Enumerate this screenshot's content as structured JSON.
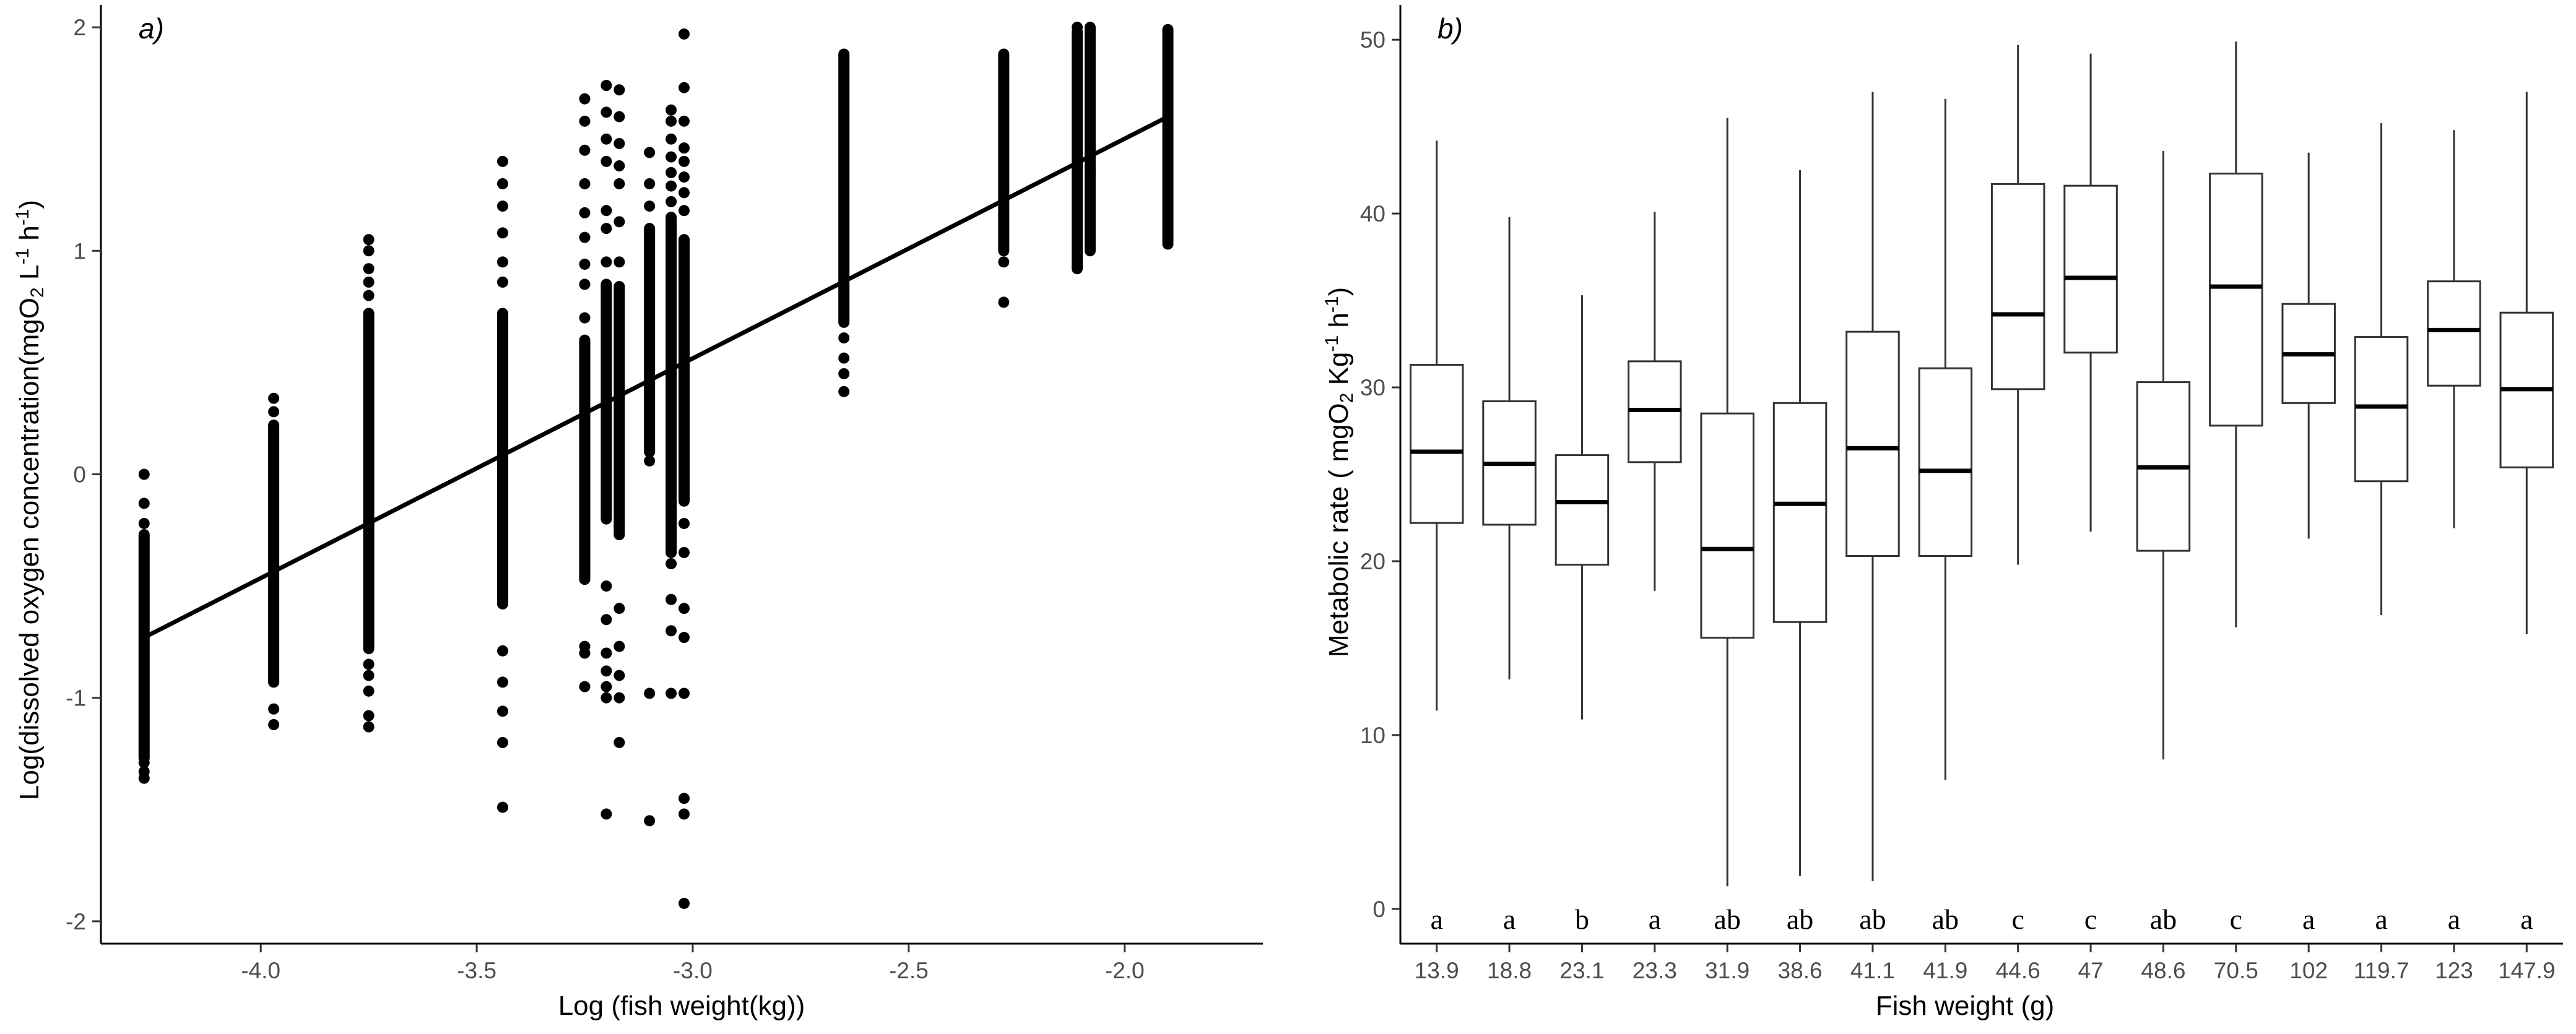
{
  "chart_data": [
    {
      "type": "scatter",
      "panel_label": "a)",
      "xlabel": "Log (fish weight(kg))",
      "ylabel_parts": [
        "Log(dissolved oxygen concentration(mgO",
        "2",
        " L",
        "-1",
        " h",
        "-1",
        ")"
      ],
      "xlim": [
        -4.37,
        -1.68
      ],
      "ylim": [
        -2.1,
        2.1
      ],
      "xticks": [
        -4.0,
        -3.5,
        -3.0,
        -2.5,
        -2.0
      ],
      "xtick_labels": [
        "-4.0",
        "-3.5",
        "-3.0",
        "-2.5",
        "-2.0"
      ],
      "yticks": [
        -2,
        -1,
        0,
        1,
        2
      ],
      "ytick_labels": [
        "-2",
        "-1",
        "0",
        "1",
        "2"
      ],
      "fit_line": {
        "x": [
          -4.27,
          -1.9
        ],
        "y": [
          -0.73,
          1.6
        ]
      },
      "clusters": [
        {
          "x": -4.27,
          "dense": [
            -1.27,
            -0.27
          ],
          "outliers": [
            -1.36,
            -1.33,
            -1.29,
            -0.22,
            -0.13,
            0.0
          ]
        },
        {
          "x": -3.97,
          "dense": [
            -0.93,
            0.22
          ],
          "outliers": [
            -1.12,
            -1.05,
            0.28,
            0.34
          ]
        },
        {
          "x": -3.75,
          "dense": [
            -0.78,
            0.72
          ],
          "outliers": [
            -1.13,
            -1.08,
            -0.97,
            -0.9,
            -0.85,
            0.8,
            0.86,
            0.92,
            1.0,
            1.05
          ]
        },
        {
          "x": -3.44,
          "dense": [
            -0.58,
            0.72
          ],
          "outliers": [
            -1.49,
            -1.2,
            -1.06,
            -0.93,
            -0.79,
            0.86,
            0.95,
            1.08,
            1.2,
            1.3,
            1.4
          ]
        },
        {
          "x": -3.25,
          "dense": [
            -0.47,
            0.6
          ],
          "outliers": [
            -0.95,
            -0.8,
            -0.77,
            0.7,
            0.85,
            0.94,
            1.06,
            1.17,
            1.3,
            1.45,
            1.58,
            1.68
          ]
        },
        {
          "x": -3.2,
          "dense": [
            -0.2,
            0.85
          ],
          "outliers": [
            -1.52,
            -1.0,
            -0.95,
            -0.88,
            -0.8,
            -0.65,
            -0.5,
            0.95,
            1.1,
            1.18,
            1.4,
            1.5,
            1.62,
            1.74
          ]
        },
        {
          "x": -3.17,
          "dense": [
            -0.27,
            0.84
          ],
          "outliers": [
            -1.2,
            -1.0,
            -0.9,
            -0.77,
            -0.6,
            0.95,
            1.13,
            1.3,
            1.38,
            1.48,
            1.6,
            1.72
          ]
        },
        {
          "x": -3.1,
          "dense": [
            0.1,
            1.1
          ],
          "outliers": [
            -1.55,
            -0.98,
            0.06,
            1.2,
            1.3,
            1.44
          ]
        },
        {
          "x": -3.05,
          "dense": [
            -0.35,
            1.15
          ],
          "outliers": [
            -0.98,
            -0.7,
            -0.56,
            -0.4,
            1.22,
            1.29,
            1.35,
            1.42,
            1.5,
            1.58,
            1.63
          ]
        },
        {
          "x": -3.02,
          "dense": [
            -0.12,
            1.05
          ],
          "outliers": [
            -1.92,
            -1.52,
            -1.45,
            -0.98,
            -0.73,
            -0.6,
            -0.35,
            -0.22,
            1.18,
            1.26,
            1.33,
            1.4,
            1.46,
            1.58,
            1.73,
            1.97
          ]
        },
        {
          "x": -2.65,
          "dense": [
            0.68,
            1.88
          ],
          "outliers": [
            0.37,
            0.45,
            0.52,
            0.61
          ]
        },
        {
          "x": -2.28,
          "dense": [
            1.0,
            1.88
          ],
          "outliers": [
            0.77,
            0.95
          ]
        },
        {
          "x": -2.11,
          "dense": [
            0.92,
            1.98
          ],
          "outliers": [
            0.93,
            2.0
          ]
        },
        {
          "x": -2.08,
          "dense": [
            1.0,
            2.0
          ],
          "outliers": [
            1.35
          ]
        },
        {
          "x": -1.9,
          "dense": [
            1.04,
            1.99
          ],
          "outliers": [
            1.03
          ]
        }
      ]
    },
    {
      "type": "box",
      "panel_label": "b)",
      "xlabel": "Fish weight (g)",
      "ylabel_parts": [
        "Metabolic rate ( mgO",
        "2",
        " Kg",
        "-1",
        " h",
        "-1",
        ")"
      ],
      "ylim": [
        -2,
        52
      ],
      "yticks": [
        0,
        10,
        20,
        30,
        40,
        50
      ],
      "ytick_labels": [
        "0",
        "10",
        "20",
        "30",
        "40",
        "50"
      ],
      "categories": [
        "13.9",
        "18.8",
        "23.1",
        "23.3",
        "31.9",
        "38.6",
        "41.1",
        "41.9",
        "44.6",
        "47",
        "48.6",
        "70.5",
        "102",
        "119.7",
        "123",
        "147.9"
      ],
      "boxes": [
        {
          "min": 11.4,
          "q1": 22.2,
          "median": 26.3,
          "q3": 31.3,
          "max": 44.2
        },
        {
          "min": 13.2,
          "q1": 22.1,
          "median": 25.6,
          "q3": 29.2,
          "max": 39.8
        },
        {
          "min": 10.9,
          "q1": 19.8,
          "median": 23.4,
          "q3": 26.1,
          "max": 35.3
        },
        {
          "min": 18.3,
          "q1": 25.7,
          "median": 28.7,
          "q3": 31.5,
          "max": 40.1
        },
        {
          "min": 1.3,
          "q1": 15.6,
          "median": 20.7,
          "q3": 28.5,
          "max": 45.5
        },
        {
          "min": 1.9,
          "q1": 16.5,
          "median": 23.3,
          "q3": 29.1,
          "max": 42.5
        },
        {
          "min": 1.6,
          "q1": 20.3,
          "median": 26.5,
          "q3": 33.2,
          "max": 47.0
        },
        {
          "min": 7.4,
          "q1": 20.3,
          "median": 25.2,
          "q3": 31.1,
          "max": 46.6
        },
        {
          "min": 19.8,
          "q1": 29.9,
          "median": 34.2,
          "q3": 41.7,
          "max": 49.7
        },
        {
          "min": 21.7,
          "q1": 32.0,
          "median": 36.3,
          "q3": 41.6,
          "max": 49.2
        },
        {
          "min": 8.6,
          "q1": 20.6,
          "median": 25.4,
          "q3": 30.3,
          "max": 43.6
        },
        {
          "min": 16.2,
          "q1": 27.8,
          "median": 35.8,
          "q3": 42.3,
          "max": 49.9
        },
        {
          "min": 21.3,
          "q1": 29.1,
          "median": 31.9,
          "q3": 34.8,
          "max": 43.5
        },
        {
          "min": 16.9,
          "q1": 24.6,
          "median": 28.9,
          "q3": 32.9,
          "max": 45.2
        },
        {
          "min": 21.9,
          "q1": 30.1,
          "median": 33.3,
          "q3": 36.1,
          "max": 44.8
        },
        {
          "min": 15.8,
          "q1": 25.4,
          "median": 29.9,
          "q3": 34.3,
          "max": 47.0
        }
      ],
      "significance_letters": [
        "a",
        "a",
        "b",
        "a",
        "ab",
        "ab",
        "ab",
        "ab",
        "c",
        "c",
        "ab",
        "c",
        "a",
        "a",
        "a",
        "a"
      ],
      "letter_y": 0
    }
  ]
}
